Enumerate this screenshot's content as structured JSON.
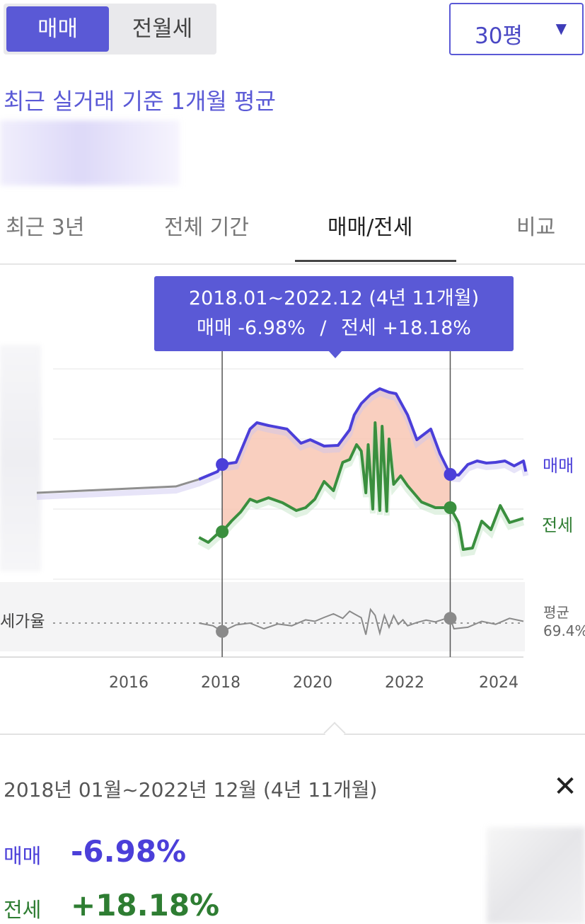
{
  "deal_toggle": {
    "sale": "매매",
    "rent": "전월세"
  },
  "area_select": {
    "value": "30평"
  },
  "subheading": "최근 실거래 기준 1개월 평균",
  "tabs": [
    "최근 3년",
    "전체 기간",
    "매매/전세",
    "비교"
  ],
  "tooltip": {
    "range": "2018.01~2022.12 (4년 11개월)",
    "sale_label": "매매 -6.98%",
    "separator": "/",
    "jeonse_label": "전세 +18.18%"
  },
  "colors": {
    "accent": "#5a59d6",
    "sale": "#4b3fd9",
    "jeonse": "#3a8f3e",
    "highlight": "#f8c7b4",
    "ratio": "#8a8a8a"
  },
  "chart_data": {
    "type": "line",
    "x_range": [
      2014.0,
      2024.5
    ],
    "x_ticks": [
      "2016",
      "2018",
      "2020",
      "2022",
      "2024"
    ],
    "selection": {
      "start": 2018.0,
      "end": 2022.92
    },
    "series": [
      {
        "name": "매매",
        "x": [
          2014.0,
          2015.0,
          2016.0,
          2017.0,
          2017.5,
          2017.9,
          2018.0,
          2018.3,
          2018.6,
          2018.75,
          2019.0,
          2019.4,
          2019.7,
          2019.9,
          2020.2,
          2020.5,
          2020.75,
          2020.85,
          2021.0,
          2021.2,
          2021.4,
          2021.6,
          2021.75,
          2022.0,
          2022.2,
          2022.5,
          2022.7,
          2022.92,
          2023.1,
          2023.3,
          2023.5,
          2023.7,
          2023.9,
          2024.1,
          2024.3,
          2024.5,
          2024.55
        ],
        "values": [
          0.0,
          0.3,
          0.6,
          0.9,
          1.9,
          3.0,
          4.0,
          4.3,
          9.0,
          9.9,
          9.5,
          9.0,
          7.0,
          7.5,
          6.6,
          6.7,
          8.9,
          11.0,
          12.6,
          13.9,
          14.7,
          14.2,
          14.0,
          11.0,
          7.5,
          9.0,
          5.5,
          2.6,
          2.5,
          4.0,
          4.5,
          4.2,
          4.3,
          4.5,
          3.8,
          4.5,
          3.0
        ]
      },
      {
        "name": "전세",
        "x": [
          2017.5,
          2017.7,
          2017.9,
          2018.0,
          2018.2,
          2018.4,
          2018.6,
          2018.75,
          2019.0,
          2019.3,
          2019.6,
          2019.8,
          2020.0,
          2020.2,
          2020.4,
          2020.6,
          2020.75,
          2020.9,
          2021.0,
          2021.1,
          2021.15,
          2021.25,
          2021.3,
          2021.4,
          2021.45,
          2021.55,
          2021.6,
          2021.7,
          2021.85,
          2022.0,
          2022.3,
          2022.6,
          2022.92,
          2023.1,
          2023.2,
          2023.4,
          2023.6,
          2023.8,
          2024.0,
          2024.2,
          2024.5
        ],
        "values": [
          -6.3,
          -7.0,
          -5.8,
          -5.5,
          -4.0,
          -2.7,
          -0.9,
          -1.3,
          -0.7,
          -1.4,
          -2.5,
          -2.1,
          -0.9,
          1.6,
          0.3,
          4.3,
          4.7,
          6.8,
          5.9,
          0.0,
          6.8,
          -2.3,
          9.9,
          -2.5,
          9.4,
          -2.6,
          7.6,
          1.2,
          2.4,
          1.0,
          -1.3,
          -2.1,
          -2.1,
          -4.2,
          -8.0,
          -7.8,
          -4.0,
          -5.2,
          -1.8,
          -4.2,
          -3.6
        ]
      },
      {
        "name": "전세가율",
        "x": [
          2017.5,
          2017.8,
          2018.0,
          2018.3,
          2018.6,
          2018.9,
          2019.2,
          2019.5,
          2019.8,
          2020.0,
          2020.2,
          2020.4,
          2020.6,
          2020.75,
          2020.85,
          2021.0,
          2021.1,
          2021.2,
          2021.3,
          2021.4,
          2021.5,
          2021.6,
          2021.7,
          2021.8,
          2021.9,
          2022.0,
          2022.2,
          2022.4,
          2022.6,
          2022.8,
          2022.92,
          2023.0,
          2023.3,
          2023.6,
          2023.9,
          2024.2,
          2024.5
        ],
        "values": [
          69.4,
          68.5,
          66.6,
          68.8,
          69.4,
          67.5,
          69.1,
          68.5,
          70.5,
          70.0,
          71.3,
          72.5,
          71.0,
          73.4,
          72.5,
          71.2,
          65.5,
          74.0,
          72.0,
          66.0,
          72.0,
          68.0,
          71.9,
          69.0,
          70.5,
          68.5,
          69.6,
          70.4,
          69.8,
          70.8,
          71.0,
          67.5,
          68.0,
          70.0,
          69.0,
          71.0,
          70.0
        ]
      }
    ],
    "ratio_average": 69.4,
    "series_labels": {
      "sale": "매매",
      "jeonse": "전세",
      "ratio": "세가율",
      "avg_line1": "평균",
      "avg_line2": "69.4%"
    }
  },
  "detail": {
    "range": "2018년 01월~2022년 12월 (4년 11개월)",
    "close_icon": "close-icon",
    "sale_label": "매매",
    "sale_value": "-6.98%",
    "jeonse_label": "전세",
    "jeonse_value": "+18.18%"
  }
}
